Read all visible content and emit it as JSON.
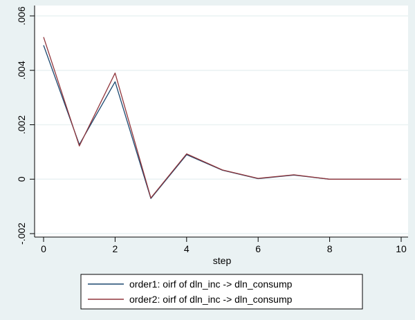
{
  "chart_data": {
    "type": "line",
    "xlabel": "step",
    "ylabel": "",
    "xlim": [
      0,
      10
    ],
    "ylim": [
      -0.002,
      0.006
    ],
    "x_ticks": [
      0,
      2,
      4,
      6,
      8,
      10
    ],
    "y_ticks": [
      -0.002,
      0,
      0.002,
      0.004,
      0.006
    ],
    "y_tick_labels": [
      "-.002",
      "0",
      ".002",
      ".004",
      ".006"
    ],
    "grid": true,
    "legend_position": "bottom",
    "x": [
      0,
      1,
      2,
      3,
      4,
      5,
      6,
      7,
      8,
      9,
      10
    ],
    "series": [
      {
        "name": "order1: oirf of dln_inc -> dln_consump",
        "color": "#1a476f",
        "values": [
          0.00492,
          0.00127,
          0.00358,
          -0.00071,
          0.0009,
          0.00033,
          2e-05,
          0.00015,
          0.0,
          0.0,
          0.0
        ]
      },
      {
        "name": "order2: oirf of dln_inc -> dln_consump",
        "color": "#90353b",
        "values": [
          0.00522,
          0.00122,
          0.0039,
          -0.00069,
          0.00093,
          0.00034,
          3e-05,
          0.00016,
          0.0,
          0.0,
          0.0
        ]
      }
    ]
  }
}
